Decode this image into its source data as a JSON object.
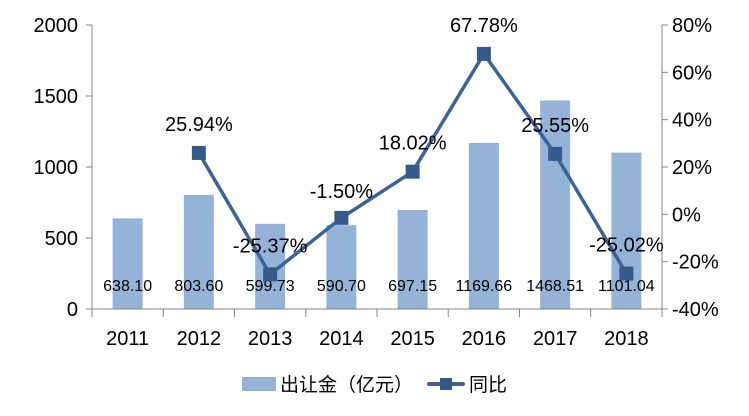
{
  "chart_data": {
    "type": "bar+line",
    "categories": [
      "2011",
      "2012",
      "2013",
      "2014",
      "2015",
      "2016",
      "2017",
      "2018"
    ],
    "series": [
      {
        "name": "出让金（亿元）",
        "type": "bar",
        "axis": "left",
        "values": [
          638.1,
          803.6,
          599.73,
          590.7,
          697.15,
          1169.66,
          1468.51,
          1101.04
        ],
        "labels": [
          "638.10",
          "803.60",
          "599.73",
          "590.70",
          "697.15",
          "1169.66",
          "1468.51",
          "1101.04"
        ],
        "color": "#95B3D7"
      },
      {
        "name": "同比",
        "type": "line",
        "axis": "right",
        "values": [
          null,
          25.94,
          -25.37,
          -1.5,
          18.02,
          67.78,
          25.55,
          -25.02
        ],
        "labels": [
          "",
          "25.94%",
          "-25.37%",
          "-1.50%",
          "18.02%",
          "67.78%",
          "25.55%",
          "-25.02%"
        ],
        "color": "#3B6398"
      }
    ],
    "left_axis": {
      "ylim": [
        0,
        2000
      ],
      "ticks": [
        "0",
        "500",
        "1000",
        "1500",
        "2000"
      ]
    },
    "right_axis": {
      "ylim": [
        -40,
        80
      ],
      "ticks": [
        "-40%",
        "-20%",
        "0%",
        "20%",
        "40%",
        "60%",
        "80%"
      ]
    },
    "legend": {
      "position": "bottom",
      "items": [
        "出让金（亿元）",
        "同比"
      ]
    },
    "grid": false
  }
}
